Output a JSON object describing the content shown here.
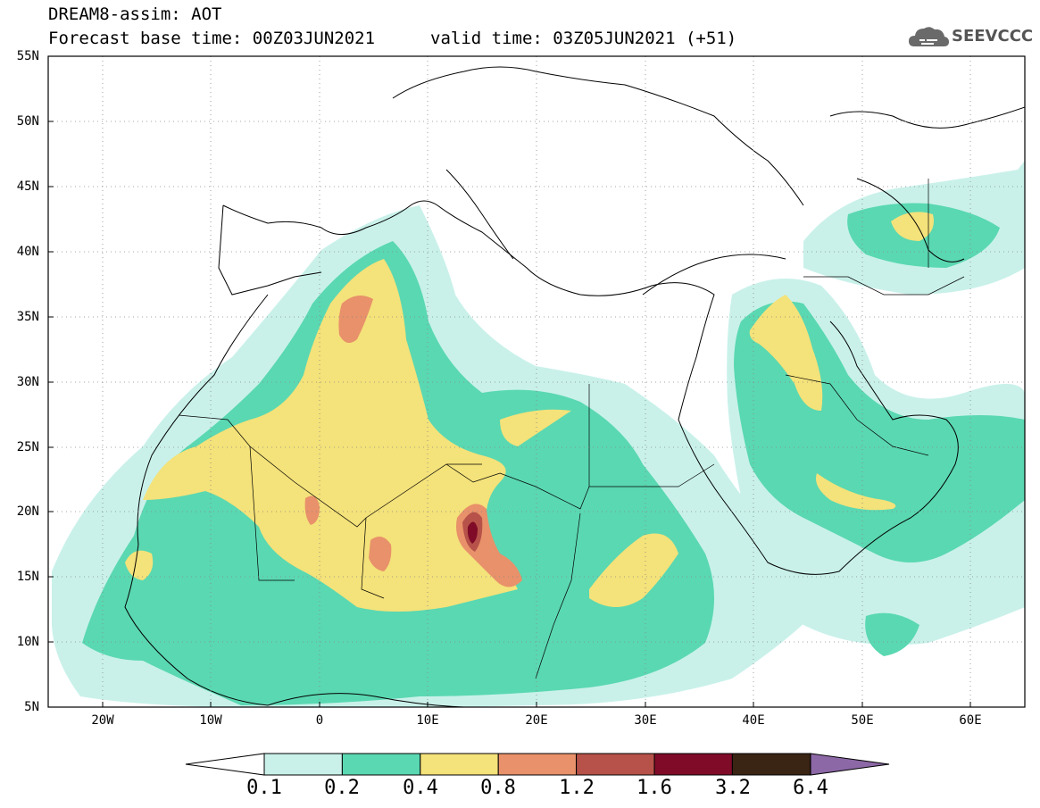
{
  "title": {
    "line1": "DREAM8-assim: AOT",
    "line2": "Forecast base time: 00Z03JUN2021",
    "valid": "valid time: 03Z05JUN2021 (+51)"
  },
  "logo": {
    "text": "SEEVCCC",
    "icon": "cloud-icon"
  },
  "map": {
    "lat_labels": [
      "55N",
      "50N",
      "45N",
      "40N",
      "35N",
      "30N",
      "25N",
      "20N",
      "15N",
      "10N",
      "5N"
    ],
    "lon_labels": [
      "20W",
      "10W",
      "0",
      "10E",
      "20E",
      "30E",
      "40E",
      "50E",
      "60E"
    ],
    "lon_range": [
      -25,
      65
    ],
    "lat_range": [
      5,
      55
    ],
    "gridlines": "dotted"
  },
  "legend": {
    "labels": [
      "0.1",
      "0.2",
      "0.4",
      "0.8",
      "1.2",
      "1.6",
      "3.2",
      "6.4"
    ],
    "colors": [
      "#ffffff",
      "#c9f1ea",
      "#5ad8b1",
      "#f4e27a",
      "#e8916a",
      "#b65249",
      "#7f0b28",
      "#3a2414",
      "#8c68a6"
    ]
  }
}
